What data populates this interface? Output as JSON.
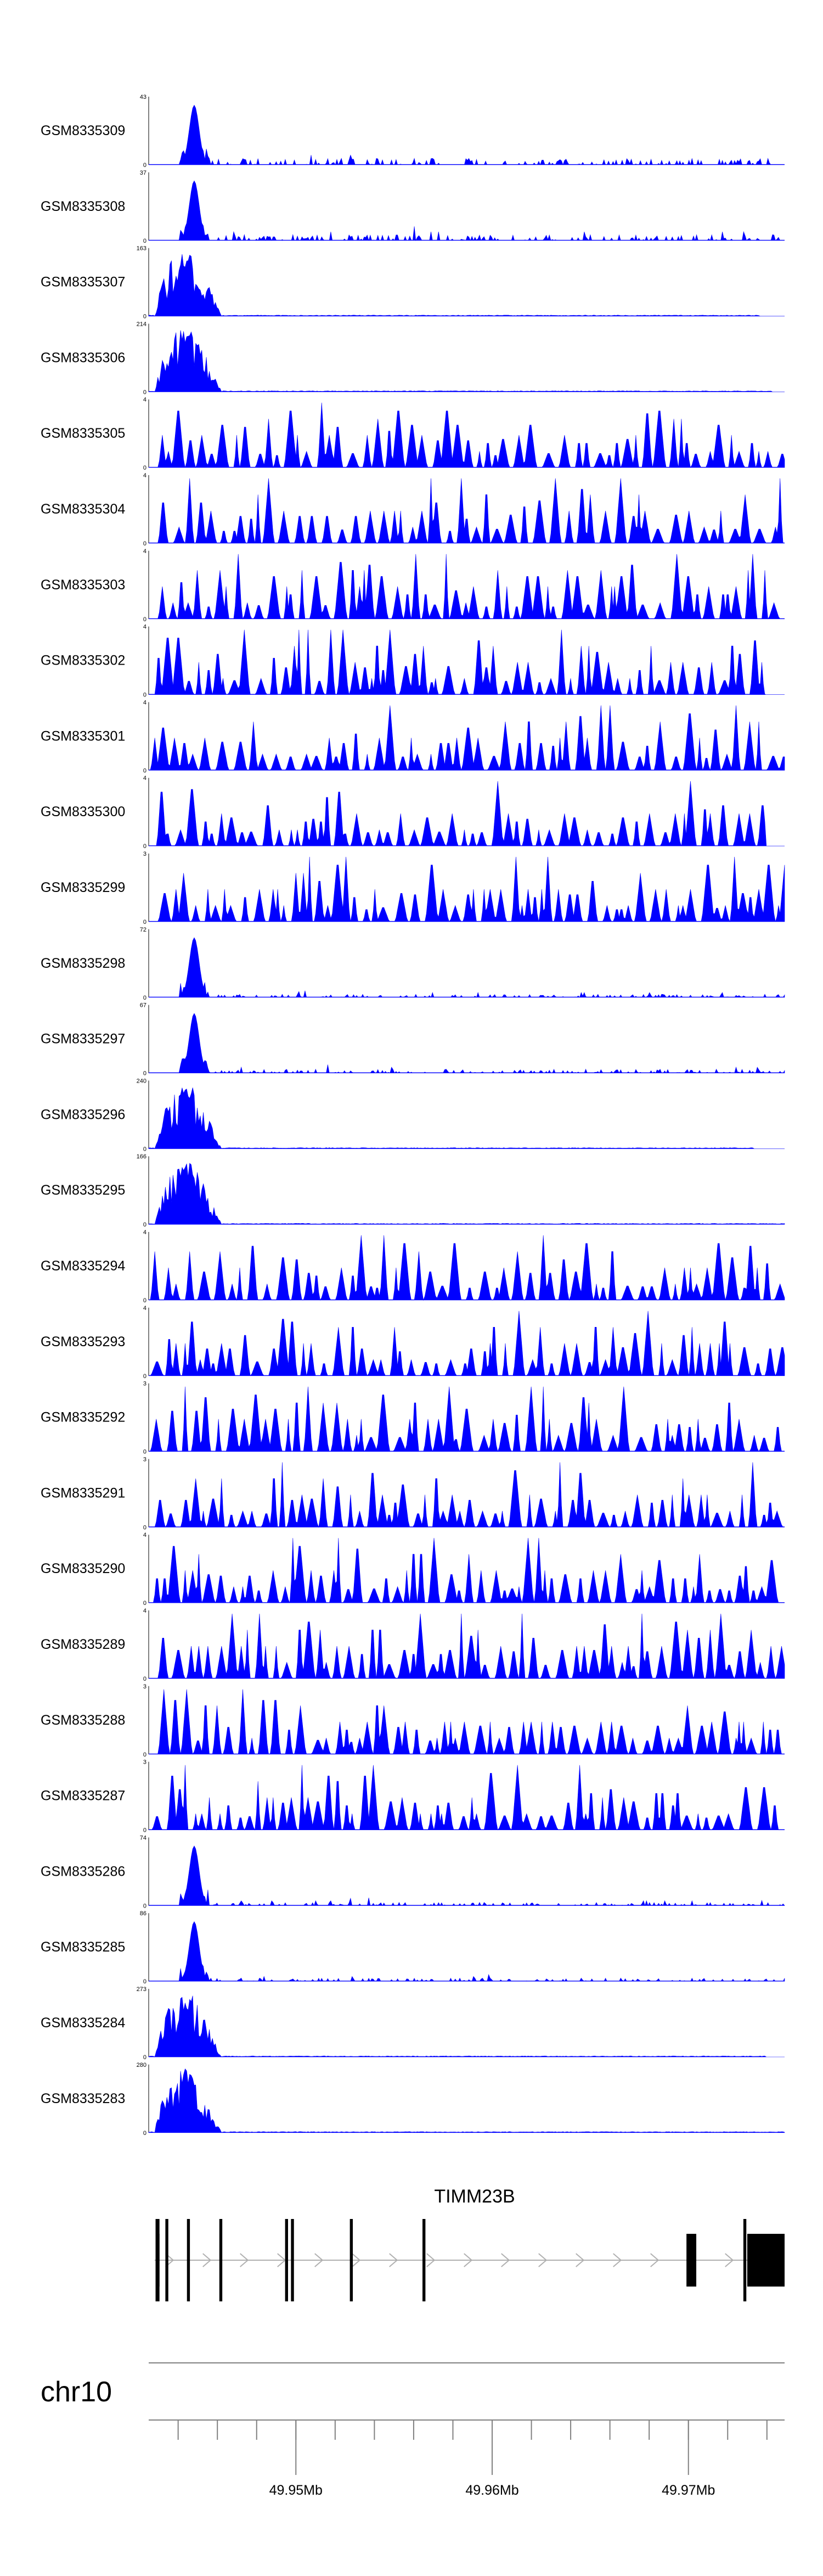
{
  "chart_data": {
    "type": "area",
    "region": {
      "chromosome": "chr10",
      "start": 49.9425,
      "end": 49.9749,
      "unit": "Mb"
    },
    "tracks": [
      {
        "name": "GSM8335309",
        "ymax": 43,
        "ymin": 0,
        "profile": "peak",
        "peak": 0.92,
        "noise": 0.1,
        "extent": 1.0,
        "seed": 1
      },
      {
        "name": "GSM8335308",
        "ymax": 37,
        "ymin": 0,
        "profile": "peak",
        "peak": 0.92,
        "noise": 0.09,
        "extent": 1.0,
        "seed": 2
      },
      {
        "name": "GSM8335307",
        "ymax": 163,
        "ymin": 0,
        "profile": "bulk",
        "peak": 0.95,
        "noise": 0.01,
        "extent": 0.96,
        "seed": 3
      },
      {
        "name": "GSM8335306",
        "ymax": 214,
        "ymin": 0,
        "profile": "bulk",
        "peak": 0.95,
        "noise": 0.01,
        "extent": 0.98,
        "seed": 4
      },
      {
        "name": "GSM8335305",
        "ymax": 4,
        "ymin": 0,
        "profile": "sparse",
        "peak": 1.0,
        "noise": 0.0,
        "extent": 1.0,
        "seed": 5
      },
      {
        "name": "GSM8335304",
        "ymax": 4,
        "ymin": 0,
        "profile": "sparse",
        "peak": 1.0,
        "noise": 0.0,
        "extent": 1.0,
        "seed": 6
      },
      {
        "name": "GSM8335303",
        "ymax": 4,
        "ymin": 0,
        "profile": "sparse",
        "peak": 1.0,
        "noise": 0.0,
        "extent": 1.0,
        "seed": 7
      },
      {
        "name": "GSM8335302",
        "ymax": 4,
        "ymin": 0,
        "profile": "sparse",
        "peak": 1.0,
        "noise": 0.0,
        "extent": 0.97,
        "seed": 8
      },
      {
        "name": "GSM8335301",
        "ymax": 4,
        "ymin": 0,
        "profile": "sparse",
        "peak": 1.0,
        "noise": 0.0,
        "extent": 1.0,
        "seed": 9
      },
      {
        "name": "GSM8335300",
        "ymax": 4,
        "ymin": 0,
        "profile": "sparse",
        "peak": 1.0,
        "noise": 0.0,
        "extent": 0.97,
        "seed": 10
      },
      {
        "name": "GSM8335299",
        "ymax": 3,
        "ymin": 0,
        "profile": "sparse",
        "peak": 1.0,
        "noise": 0.0,
        "extent": 1.0,
        "seed": 11
      },
      {
        "name": "GSM8335298",
        "ymax": 72,
        "ymin": 0,
        "profile": "peak",
        "peak": 0.92,
        "noise": 0.05,
        "extent": 1.0,
        "seed": 12
      },
      {
        "name": "GSM8335297",
        "ymax": 67,
        "ymin": 0,
        "profile": "peak",
        "peak": 0.92,
        "noise": 0.06,
        "extent": 1.0,
        "seed": 13
      },
      {
        "name": "GSM8335296",
        "ymax": 240,
        "ymin": 0,
        "profile": "bulk",
        "peak": 0.95,
        "noise": 0.01,
        "extent": 0.95,
        "seed": 14
      },
      {
        "name": "GSM8335295",
        "ymax": 166,
        "ymin": 0,
        "profile": "bulk",
        "peak": 0.95,
        "noise": 0.01,
        "extent": 1.0,
        "seed": 15
      },
      {
        "name": "GSM8335294",
        "ymax": 4,
        "ymin": 0,
        "profile": "sparse",
        "peak": 1.0,
        "noise": 0.0,
        "extent": 1.0,
        "seed": 16
      },
      {
        "name": "GSM8335293",
        "ymax": 4,
        "ymin": 0,
        "profile": "sparse",
        "peak": 1.0,
        "noise": 0.0,
        "extent": 1.0,
        "seed": 17
      },
      {
        "name": "GSM8335292",
        "ymax": 3,
        "ymin": 0,
        "profile": "sparse",
        "peak": 1.0,
        "noise": 0.0,
        "extent": 1.0,
        "seed": 18
      },
      {
        "name": "GSM8335291",
        "ymax": 3,
        "ymin": 0,
        "profile": "sparse",
        "peak": 1.0,
        "noise": 0.0,
        "extent": 1.0,
        "seed": 19
      },
      {
        "name": "GSM8335290",
        "ymax": 4,
        "ymin": 0,
        "profile": "sparse",
        "peak": 1.0,
        "noise": 0.0,
        "extent": 1.0,
        "seed": 20
      },
      {
        "name": "GSM8335289",
        "ymax": 4,
        "ymin": 0,
        "profile": "sparse",
        "peak": 1.0,
        "noise": 0.0,
        "extent": 1.0,
        "seed": 21
      },
      {
        "name": "GSM8335288",
        "ymax": 3,
        "ymin": 0,
        "profile": "sparse",
        "peak": 1.0,
        "noise": 0.0,
        "extent": 1.0,
        "seed": 22
      },
      {
        "name": "GSM8335287",
        "ymax": 3,
        "ymin": 0,
        "profile": "sparse",
        "peak": 1.0,
        "noise": 0.0,
        "extent": 1.0,
        "seed": 23
      },
      {
        "name": "GSM8335286",
        "ymax": 74,
        "ymin": 0,
        "profile": "peak",
        "peak": 0.92,
        "noise": 0.05,
        "extent": 1.0,
        "seed": 24
      },
      {
        "name": "GSM8335285",
        "ymax": 86,
        "ymin": 0,
        "profile": "peak",
        "peak": 0.92,
        "noise": 0.05,
        "extent": 1.0,
        "seed": 25
      },
      {
        "name": "GSM8335284",
        "ymax": 273,
        "ymin": 0,
        "profile": "bulk",
        "peak": 0.95,
        "noise": 0.01,
        "extent": 0.97,
        "seed": 26
      },
      {
        "name": "GSM8335283",
        "ymax": 280,
        "ymin": 0,
        "profile": "bulk",
        "peak": 0.95,
        "noise": 0.01,
        "extent": 1.0,
        "seed": 27
      }
    ],
    "gene": {
      "name": "TIMM23B",
      "strand": "+",
      "start": 49.9428,
      "end": 49.9749,
      "exons": [
        {
          "start": 49.94285,
          "end": 49.94305
        },
        {
          "start": 49.94335,
          "end": 49.9435
        },
        {
          "start": 49.94445,
          "end": 49.9446
        },
        {
          "start": 49.9461,
          "end": 49.94625
        },
        {
          "start": 49.94945,
          "end": 49.9496
        },
        {
          "start": 49.94975,
          "end": 49.9499
        },
        {
          "start": 49.95275,
          "end": 49.9529
        },
        {
          "start": 49.95645,
          "end": 49.9566
        },
        {
          "start": 49.9699,
          "end": 49.9704
        },
        {
          "start": 49.9728,
          "end": 49.97295
        },
        {
          "start": 49.973,
          "end": 49.9749
        }
      ],
      "utr_exons": [
        {
          "start": 49.9429,
          "end": 49.94305
        },
        {
          "start": 49.973,
          "end": 49.9749
        }
      ]
    },
    "axis": {
      "chromosome_label": "chr10",
      "tick_labels": [
        {
          "value": 49.95,
          "label": "49.95Mb"
        },
        {
          "value": 49.96,
          "label": "49.96Mb"
        },
        {
          "value": 49.97,
          "label": "49.97Mb"
        }
      ],
      "minor_tick_step": 0.002
    },
    "colors": {
      "signal": "#0000ff",
      "gene": "#000000",
      "intron": "#b0b0b0",
      "axis": "#808080"
    }
  }
}
